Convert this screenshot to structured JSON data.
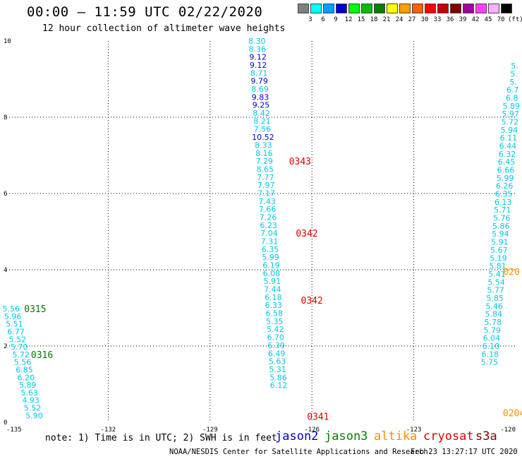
{
  "title": "00:00 – 11:59 UTC 02/22/2020",
  "subtitle": "12 hour collection of altimeter wave heights",
  "color_scale": {
    "unit_label": "(ft)",
    "tick_labels": [
      "3",
      "6",
      "9",
      "12",
      "15",
      "18",
      "21",
      "24",
      "27",
      "30",
      "33",
      "36",
      "39",
      "42",
      "45",
      "70"
    ],
    "colors": [
      "#808080",
      "#00ffff",
      "#00a0ff",
      "#0000d0",
      "#00ff00",
      "#00c000",
      "#008000",
      "#ffff00",
      "#ffa000",
      "#ff6000",
      "#ff0000",
      "#c00000",
      "#800000",
      "#a000a0",
      "#ff40ff",
      "#ffb0ff",
      "#000000"
    ]
  },
  "footer": {
    "note": "note: 1) Time is in UTC; 2) SWH is in feet",
    "legend": [
      {
        "name": "jason2",
        "color": "#0000d0"
      },
      {
        "name": "jason3",
        "color": "#008000"
      },
      {
        "name": "altika",
        "color": "#ff8c00"
      },
      {
        "name": "cryosat",
        "color": "#e00000"
      },
      {
        "name": "s3a",
        "color": "#800000"
      }
    ],
    "credit": "NOAA/NESDIS Center for Satellite Applications and Research",
    "generated": "Feb 23 13:27:17 UTC 2020"
  },
  "chart_data": {
    "type": "scatter",
    "x_axis": {
      "ticks": [
        -135,
        -132,
        -129,
        -126,
        -123,
        -120
      ],
      "range": [
        -135,
        -120
      ],
      "grid": true
    },
    "y_axis": {
      "ticks": [
        0,
        2,
        4,
        6,
        8,
        10
      ],
      "range": [
        0,
        10
      ],
      "grid": true
    },
    "tracks": [
      {
        "id": "left-track",
        "points": [
          {
            "lon": -134.86,
            "lat": 2.98,
            "value": "5.56",
            "color": "#00c8e8"
          },
          {
            "lon": -134.81,
            "lat": 2.78,
            "value": "5.96",
            "color": "#00c8e8"
          },
          {
            "lon": -134.76,
            "lat": 2.58,
            "value": "5.51",
            "color": "#00c8e8"
          },
          {
            "lon": -134.72,
            "lat": 2.38,
            "value": "6.77",
            "color": "#00c8e8"
          },
          {
            "lon": -134.67,
            "lat": 2.18,
            "value": "5.52",
            "color": "#00c8e8"
          },
          {
            "lon": -134.62,
            "lat": 1.98,
            "value": "5.70",
            "color": "#00c8e8"
          },
          {
            "lon": -134.57,
            "lat": 1.78,
            "value": "5.72",
            "color": "#00c8e8"
          },
          {
            "lon": -134.52,
            "lat": 1.58,
            "value": "5.56",
            "color": "#00c8e8"
          },
          {
            "lon": -134.47,
            "lat": 1.38,
            "value": "6.85",
            "color": "#00c8e8"
          },
          {
            "lon": -134.42,
            "lat": 1.18,
            "value": "6.20",
            "color": "#00c8e8"
          },
          {
            "lon": -134.37,
            "lat": 0.98,
            "value": "5.89",
            "color": "#00c8e8"
          },
          {
            "lon": -134.32,
            "lat": 0.78,
            "value": "5.63",
            "color": "#00c8e8"
          },
          {
            "lon": -134.28,
            "lat": 0.58,
            "value": "4.93",
            "color": "#00c8e8"
          },
          {
            "lon": -134.23,
            "lat": 0.38,
            "value": "5.52",
            "color": "#00c8e8"
          },
          {
            "lon": -134.18,
            "lat": 0.18,
            "value": "5.90",
            "color": "#00c8e8"
          }
        ],
        "time_labels": [
          {
            "lon": -134.15,
            "lat": 2.98,
            "text": "0315",
            "color": "#007800"
          },
          {
            "lon": -133.95,
            "lat": 1.78,
            "text": "0316",
            "color": "#007800"
          }
        ]
      },
      {
        "id": "middle-track",
        "points": [
          {
            "lon": -127.62,
            "lat": 10.0,
            "value": "8.30",
            "color": "#00c8e8"
          },
          {
            "lon": -127.61,
            "lat": 9.79,
            "value": "8.36",
            "color": "#00c8e8"
          },
          {
            "lon": -127.59,
            "lat": 9.58,
            "value": "9.12",
            "color": "#0000d0"
          },
          {
            "lon": -127.58,
            "lat": 9.37,
            "value": "9.12",
            "color": "#0000d0"
          },
          {
            "lon": -127.56,
            "lat": 9.16,
            "value": "8.71",
            "color": "#00c8e8"
          },
          {
            "lon": -127.55,
            "lat": 8.95,
            "value": "9.79",
            "color": "#0000d0"
          },
          {
            "lon": -127.53,
            "lat": 8.74,
            "value": "8.69",
            "color": "#00c8e8"
          },
          {
            "lon": -127.52,
            "lat": 8.53,
            "value": "9.83",
            "color": "#0000d0"
          },
          {
            "lon": -127.5,
            "lat": 8.32,
            "value": "9.25",
            "color": "#0000d0"
          },
          {
            "lon": -127.49,
            "lat": 8.11,
            "value": "8.42",
            "color": "#00c8e8"
          },
          {
            "lon": -127.47,
            "lat": 7.9,
            "value": "8.21",
            "color": "#00c8e8"
          },
          {
            "lon": -127.46,
            "lat": 7.69,
            "value": "7.56",
            "color": "#00c8e8"
          },
          {
            "lon": -127.44,
            "lat": 7.48,
            "value": "10.52",
            "color": "#0000d0"
          },
          {
            "lon": -127.43,
            "lat": 7.27,
            "value": "8.33",
            "color": "#00c8e8"
          },
          {
            "lon": -127.41,
            "lat": 7.06,
            "value": "8.16",
            "color": "#00c8e8"
          },
          {
            "lon": -127.4,
            "lat": 6.85,
            "value": "7.29",
            "color": "#00c8e8"
          },
          {
            "lon": -127.38,
            "lat": 6.64,
            "value": "8.65",
            "color": "#00c8e8"
          },
          {
            "lon": -127.37,
            "lat": 6.43,
            "value": "7.77",
            "color": "#00c8e8"
          },
          {
            "lon": -127.35,
            "lat": 6.22,
            "value": "7.97",
            "color": "#00c8e8"
          },
          {
            "lon": -127.34,
            "lat": 6.01,
            "value": "7.17",
            "color": "#00c8e8"
          },
          {
            "lon": -127.32,
            "lat": 5.8,
            "value": "7.43",
            "color": "#00c8e8"
          },
          {
            "lon": -127.31,
            "lat": 5.59,
            "value": "7.66",
            "color": "#00c8e8"
          },
          {
            "lon": -127.29,
            "lat": 5.38,
            "value": "7.26",
            "color": "#00c8e8"
          },
          {
            "lon": -127.28,
            "lat": 5.17,
            "value": "6.23",
            "color": "#00c8e8"
          },
          {
            "lon": -127.26,
            "lat": 4.96,
            "value": "7.04",
            "color": "#00c8e8"
          },
          {
            "lon": -127.25,
            "lat": 4.75,
            "value": "7.31",
            "color": "#00c8e8"
          },
          {
            "lon": -127.23,
            "lat": 4.54,
            "value": "6.35",
            "color": "#00c8e8"
          },
          {
            "lon": -127.22,
            "lat": 4.33,
            "value": "5.99",
            "color": "#00c8e8"
          },
          {
            "lon": -127.2,
            "lat": 4.12,
            "value": "6.19",
            "color": "#00c8e8"
          },
          {
            "lon": -127.19,
            "lat": 3.91,
            "value": "6.08",
            "color": "#00c8e8"
          },
          {
            "lon": -127.17,
            "lat": 3.7,
            "value": "5.91",
            "color": "#00c8e8"
          },
          {
            "lon": -127.16,
            "lat": 3.49,
            "value": "7.44",
            "color": "#00c8e8"
          },
          {
            "lon": -127.14,
            "lat": 3.28,
            "value": "6.18",
            "color": "#00c8e8"
          },
          {
            "lon": -127.13,
            "lat": 3.07,
            "value": "6.33",
            "color": "#00c8e8"
          },
          {
            "lon": -127.11,
            "lat": 2.86,
            "value": "6.58",
            "color": "#00c8e8"
          },
          {
            "lon": -127.1,
            "lat": 2.65,
            "value": "5.35",
            "color": "#00c8e8"
          },
          {
            "lon": -127.08,
            "lat": 2.44,
            "value": "5.42",
            "color": "#00c8e8"
          },
          {
            "lon": -127.07,
            "lat": 2.23,
            "value": "6.70",
            "color": "#00c8e8"
          },
          {
            "lon": -127.05,
            "lat": 2.02,
            "value": "6.39",
            "color": "#00c8e8"
          },
          {
            "lon": -127.04,
            "lat": 1.81,
            "value": "6.49",
            "color": "#00c8e8"
          },
          {
            "lon": -127.02,
            "lat": 1.6,
            "value": "5.63",
            "color": "#00c8e8"
          },
          {
            "lon": -127.01,
            "lat": 1.39,
            "value": "5.31",
            "color": "#00c8e8"
          },
          {
            "lon": -126.99,
            "lat": 1.18,
            "value": "5.86",
            "color": "#00c8e8"
          },
          {
            "lon": -126.98,
            "lat": 0.97,
            "value": "6.12",
            "color": "#00c8e8"
          }
        ],
        "time_labels": [
          {
            "lon": -126.35,
            "lat": 6.85,
            "text": "0343",
            "color": "#e00000"
          },
          {
            "lon": -126.15,
            "lat": 4.96,
            "text": "0342",
            "color": "#e00000"
          },
          {
            "lon": -126.0,
            "lat": 3.2,
            "text": "0342",
            "color": "#e00000"
          },
          {
            "lon": -125.82,
            "lat": 0.16,
            "text": "0341",
            "color": "#e00000"
          }
        ]
      },
      {
        "id": "right-track",
        "points": [
          {
            "lon": -120.03,
            "lat": 9.35,
            "value": "5.",
            "color": "#00c8e8"
          },
          {
            "lon": -120.05,
            "lat": 9.14,
            "value": "5.",
            "color": "#00c8e8"
          },
          {
            "lon": -120.07,
            "lat": 8.93,
            "value": "5.",
            "color": "#00c8e8"
          },
          {
            "lon": -120.09,
            "lat": 8.72,
            "value": "6.7",
            "color": "#00c8e8"
          },
          {
            "lon": -120.11,
            "lat": 8.51,
            "value": "6.8",
            "color": "#00c8e8"
          },
          {
            "lon": -120.13,
            "lat": 8.3,
            "value": "5.89",
            "color": "#00c8e8"
          },
          {
            "lon": -120.15,
            "lat": 8.09,
            "value": "5.97",
            "color": "#00c8e8"
          },
          {
            "lon": -120.17,
            "lat": 7.88,
            "value": "5.72",
            "color": "#00c8e8"
          },
          {
            "lon": -120.19,
            "lat": 7.67,
            "value": "5.94",
            "color": "#00c8e8"
          },
          {
            "lon": -120.21,
            "lat": 7.46,
            "value": "6.11",
            "color": "#00c8e8"
          },
          {
            "lon": -120.23,
            "lat": 7.25,
            "value": "6.44",
            "color": "#00c8e8"
          },
          {
            "lon": -120.25,
            "lat": 7.04,
            "value": "6.32",
            "color": "#00c8e8"
          },
          {
            "lon": -120.27,
            "lat": 6.83,
            "value": "6.45",
            "color": "#00c8e8"
          },
          {
            "lon": -120.29,
            "lat": 6.62,
            "value": "6.66",
            "color": "#00c8e8"
          },
          {
            "lon": -120.31,
            "lat": 6.41,
            "value": "5.99",
            "color": "#00c8e8"
          },
          {
            "lon": -120.33,
            "lat": 6.2,
            "value": "6.26",
            "color": "#00c8e8"
          },
          {
            "lon": -120.35,
            "lat": 5.99,
            "value": "6.35",
            "color": "#00c8e8"
          },
          {
            "lon": -120.37,
            "lat": 5.78,
            "value": "6.13",
            "color": "#00c8e8"
          },
          {
            "lon": -120.39,
            "lat": 5.57,
            "value": "5.71",
            "color": "#00c8e8"
          },
          {
            "lon": -120.41,
            "lat": 5.36,
            "value": "5.76",
            "color": "#00c8e8"
          },
          {
            "lon": -120.43,
            "lat": 5.15,
            "value": "5.86",
            "color": "#00c8e8"
          },
          {
            "lon": -120.45,
            "lat": 4.94,
            "value": "5.94",
            "color": "#00c8e8"
          },
          {
            "lon": -120.47,
            "lat": 4.73,
            "value": "5.91",
            "color": "#00c8e8"
          },
          {
            "lon": -120.49,
            "lat": 4.52,
            "value": "5.67",
            "color": "#00c8e8"
          },
          {
            "lon": -120.51,
            "lat": 4.31,
            "value": "5.19",
            "color": "#00c8e8"
          },
          {
            "lon": -120.53,
            "lat": 4.1,
            "value": "5.81",
            "color": "#00c8e8"
          },
          {
            "lon": -120.55,
            "lat": 3.89,
            "value": "5.41",
            "color": "#00c8e8"
          },
          {
            "lon": -120.57,
            "lat": 3.68,
            "value": "5.54",
            "color": "#00c8e8"
          },
          {
            "lon": -120.59,
            "lat": 3.47,
            "value": "5.77",
            "color": "#00c8e8"
          },
          {
            "lon": -120.61,
            "lat": 3.26,
            "value": "5.85",
            "color": "#00c8e8"
          },
          {
            "lon": -120.63,
            "lat": 3.05,
            "value": "5.46",
            "color": "#00c8e8"
          },
          {
            "lon": -120.65,
            "lat": 2.84,
            "value": "5.84",
            "color": "#00c8e8"
          },
          {
            "lon": -120.67,
            "lat": 2.63,
            "value": "5.78",
            "color": "#00c8e8"
          },
          {
            "lon": -120.69,
            "lat": 2.42,
            "value": "5.79",
            "color": "#00c8e8"
          },
          {
            "lon": -120.71,
            "lat": 2.21,
            "value": "6.04",
            "color": "#00c8e8"
          },
          {
            "lon": -120.73,
            "lat": 2.0,
            "value": "6.10",
            "color": "#00c8e8"
          },
          {
            "lon": -120.75,
            "lat": 1.79,
            "value": "6.18",
            "color": "#00c8e8"
          },
          {
            "lon": -120.77,
            "lat": 1.58,
            "value": "5.75",
            "color": "#00c8e8"
          }
        ],
        "time_labels": [
          {
            "lon": -120.12,
            "lat": 3.95,
            "text": "020",
            "color": "#ff8c00"
          },
          {
            "lon": -120.05,
            "lat": 0.25,
            "text": "0204",
            "color": "#ff8c00"
          }
        ]
      }
    ]
  }
}
